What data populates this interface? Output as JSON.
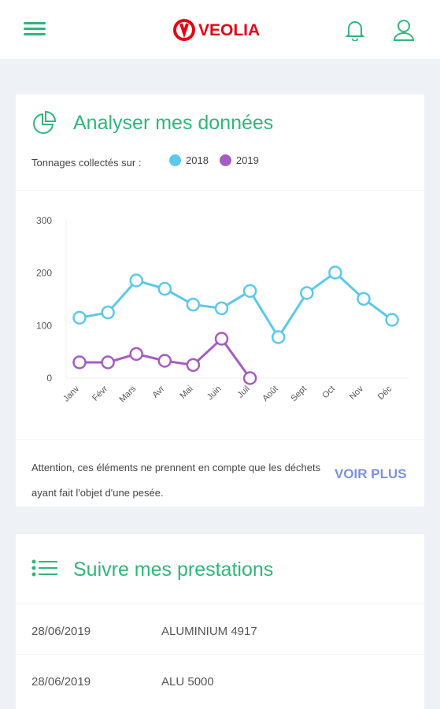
{
  "header": {
    "logo": "VEOLIA"
  },
  "analysis": {
    "title": "Analyser mes données",
    "legend_label": "Tonnages collectés sur :",
    "note": "Attention, ces éléments ne prennent en compte que les déchets ayant fait l'objet d'une pesée.",
    "link": "VOIR PLUS"
  },
  "chart_data": {
    "type": "line",
    "categories": [
      "Janv",
      "Févr",
      "Mars",
      "Avr",
      "Mai",
      "Juin",
      "Juil",
      "Août",
      "Sept",
      "Oct",
      "Nov",
      "Déc"
    ],
    "series": [
      {
        "name": "2018",
        "color": "#5bc8ec",
        "values": [
          115,
          125,
          186,
          170,
          140,
          133,
          166,
          78,
          162,
          201,
          151,
          111
        ]
      },
      {
        "name": "2019",
        "color": "#a55bc4",
        "values": [
          30,
          30,
          46,
          33,
          25,
          75,
          0,
          null,
          null,
          null,
          null,
          null
        ]
      }
    ],
    "ylim": [
      0,
      300
    ],
    "yticks": [
      0,
      100,
      200,
      300
    ],
    "grid": false
  },
  "services": {
    "title": "Suivre mes prestations",
    "rows": [
      [
        "28/06/2019",
        "ALUMINIUM 4917"
      ],
      [
        "28/06/2019",
        "ALU 5000"
      ]
    ]
  }
}
